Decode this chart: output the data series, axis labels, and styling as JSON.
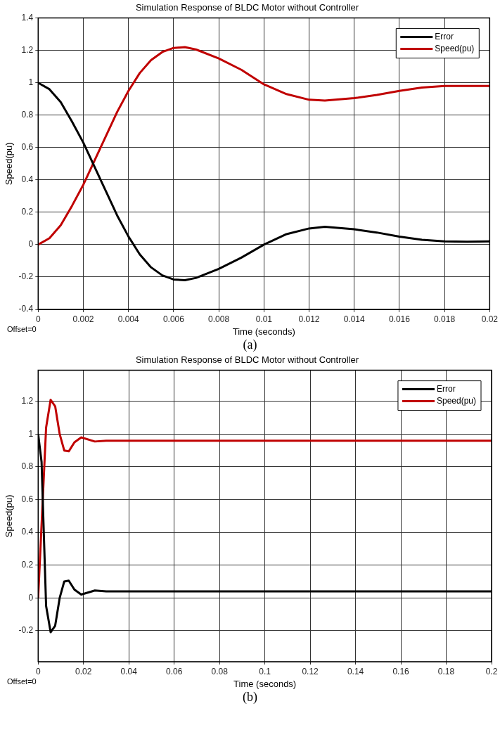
{
  "chart_data": [
    {
      "type": "line",
      "title": "Simulation Response of BLDC Motor without Controller",
      "xlabel": "Time (seconds)",
      "ylabel": "Speed(pu)",
      "xlim": [
        0,
        0.02
      ],
      "xticks": [
        0,
        0.002,
        0.004,
        0.006,
        0.008,
        0.01,
        0.012,
        0.014,
        0.016,
        0.018,
        0.02
      ],
      "ylim": [
        -0.4,
        1.4
      ],
      "yticks": [
        -0.4,
        -0.2,
        0,
        0.2,
        0.4,
        0.6,
        0.8,
        1,
        1.2,
        1.4
      ],
      "grid": true,
      "legend": "top right",
      "marker": "none",
      "line_style": "solid",
      "series": [
        {
          "name": "Error",
          "color": "#000000",
          "x": [
            0,
            0.0005,
            0.001,
            0.0015,
            0.002,
            0.0025,
            0.003,
            0.0035,
            0.004,
            0.0045,
            0.005,
            0.0055,
            0.006,
            0.0065,
            0.007,
            0.008,
            0.009,
            0.01,
            0.011,
            0.012,
            0.0127,
            0.014,
            0.015,
            0.016,
            0.017,
            0.018,
            0.019,
            0.02
          ],
          "values": [
            1,
            0.96,
            0.88,
            0.76,
            0.63,
            0.48,
            0.33,
            0.18,
            0.05,
            -0.06,
            -0.14,
            -0.19,
            -0.215,
            -0.22,
            -0.205,
            -0.15,
            -0.08,
            0,
            0.065,
            0.1,
            0.11,
            0.095,
            0.075,
            0.05,
            0.03,
            0.02,
            0.018,
            0.02
          ]
        },
        {
          "name": "Speed(pu)",
          "color": "#c00000",
          "x": [
            0,
            0.0005,
            0.001,
            0.0015,
            0.002,
            0.0025,
            0.003,
            0.0035,
            0.004,
            0.0045,
            0.005,
            0.0055,
            0.006,
            0.0065,
            0.007,
            0.008,
            0.009,
            0.01,
            0.011,
            0.012,
            0.0127,
            0.014,
            0.015,
            0.016,
            0.017,
            0.018,
            0.019,
            0.02
          ],
          "values": [
            0,
            0.04,
            0.12,
            0.24,
            0.37,
            0.52,
            0.67,
            0.82,
            0.95,
            1.06,
            1.14,
            1.19,
            1.215,
            1.22,
            1.205,
            1.15,
            1.08,
            0.99,
            0.93,
            0.895,
            0.89,
            0.905,
            0.925,
            0.95,
            0.97,
            0.98,
            0.98,
            0.98
          ]
        }
      ],
      "annotations": [
        "Offset=0",
        "(a)"
      ]
    },
    {
      "type": "line",
      "title": "Simulation Response of BLDC Motor without Controller",
      "xlabel": "Time (seconds)",
      "ylabel": "Speed(pu)",
      "xlim": [
        0,
        0.2
      ],
      "xticks": [
        0,
        0.02,
        0.04,
        0.06,
        0.08,
        0.1,
        0.12,
        0.14,
        0.16,
        0.18,
        0.2
      ],
      "ylim": [
        -0.39,
        1.39
      ],
      "yticks": [
        -0.2,
        0,
        0.2,
        0.4,
        0.6,
        0.8,
        1,
        1.2
      ],
      "grid": true,
      "legend": "top right",
      "marker": "none",
      "line_style": "solid",
      "series": [
        {
          "name": "Error",
          "color": "#000000",
          "x": [
            0,
            0.0015,
            0.0035,
            0.0055,
            0.0075,
            0.0095,
            0.0115,
            0.0135,
            0.016,
            0.019,
            0.025,
            0.03,
            0.035,
            0.2
          ],
          "values": [
            1,
            0.83,
            -0.05,
            -0.21,
            -0.17,
            0,
            0.1,
            0.105,
            0.05,
            0.02,
            0.045,
            0.04,
            0.04,
            0.04
          ]
        },
        {
          "name": "Speed(pu)",
          "color": "#c00000",
          "x": [
            0,
            0.0035,
            0.0055,
            0.0075,
            0.0095,
            0.0115,
            0.0135,
            0.016,
            0.019,
            0.025,
            0.03,
            0.035,
            0.2
          ],
          "values": [
            0,
            1.04,
            1.21,
            1.17,
            1,
            0.9,
            0.895,
            0.95,
            0.98,
            0.955,
            0.96,
            0.96,
            0.96
          ]
        }
      ],
      "annotations": [
        "Offset=0",
        "(b)"
      ]
    }
  ]
}
